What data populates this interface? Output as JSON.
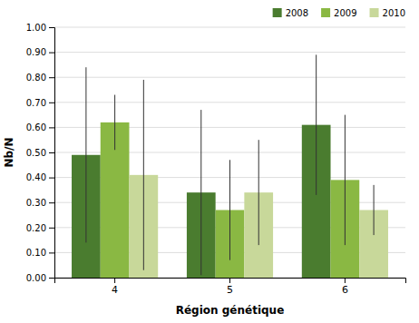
{
  "chart_data": {
    "type": "bar",
    "categories": [
      "4",
      "5",
      "6"
    ],
    "series": [
      {
        "name": "2008",
        "color": "#4a7c2f",
        "values": [
          0.49,
          0.34,
          0.61
        ],
        "errors": [
          0.35,
          0.33,
          0.28
        ]
      },
      {
        "name": "2009",
        "color": "#8ab843",
        "values": [
          0.62,
          0.27,
          0.39
        ],
        "errors": [
          0.11,
          0.2,
          0.26
        ]
      },
      {
        "name": "2010",
        "color": "#c8d89a",
        "values": [
          0.41,
          0.34,
          0.27
        ],
        "errors": [
          0.38,
          0.21,
          0.1
        ]
      }
    ],
    "x_label": "Région génétique",
    "y_label": "Nb/N",
    "ylim": [
      0.0,
      1.0
    ],
    "yticks": [
      {
        "value": 0.0,
        "label": "0.00"
      },
      {
        "value": 0.1,
        "label": "0.10"
      },
      {
        "value": 0.2,
        "label": "0.20"
      },
      {
        "value": 0.3,
        "label": "0.30"
      },
      {
        "value": 0.4,
        "label": "0.40"
      },
      {
        "value": 0.5,
        "label": "0.50"
      },
      {
        "value": 0.6,
        "label": "0.60"
      },
      {
        "value": 0.7,
        "label": "0.70"
      },
      {
        "value": 0.8,
        "label": "0.80"
      },
      {
        "value": 0.9,
        "label": "0.90"
      },
      {
        "value": 1.0,
        "label": "1.00"
      }
    ],
    "grid": true,
    "legend": "upper right"
  }
}
